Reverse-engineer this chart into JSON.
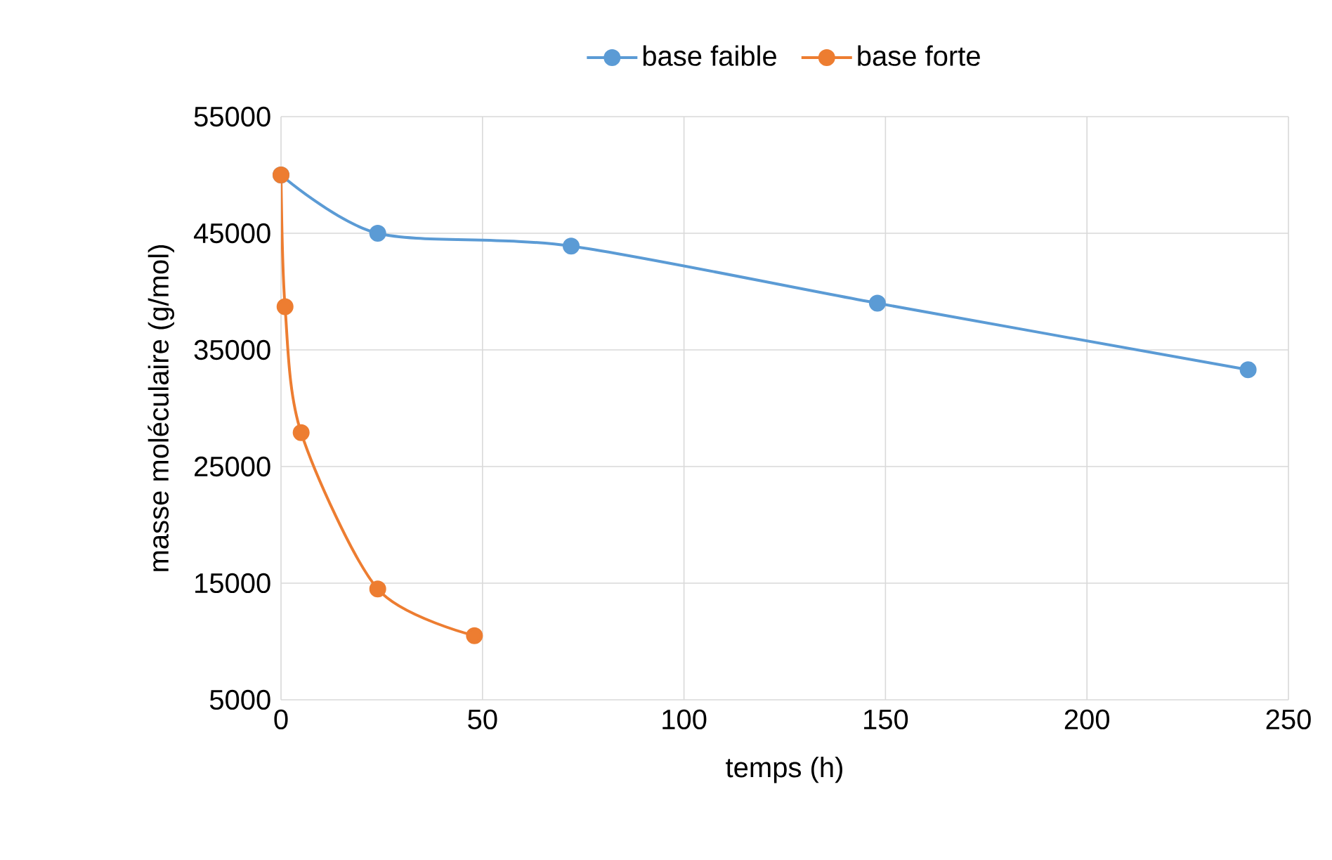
{
  "chart_data": {
    "type": "line",
    "xlabel": "temps (h)",
    "ylabel": "masse moléculaire (g/mol)",
    "xlim": [
      0,
      250
    ],
    "xticks": [
      0,
      50,
      100,
      150,
      200,
      250
    ],
    "ylim": [
      5000,
      55000
    ],
    "yticks": [
      5000,
      15000,
      25000,
      35000,
      45000,
      55000
    ],
    "grid": true,
    "legend": "top",
    "marker": "circle",
    "series": [
      {
        "name": "base faible",
        "color": "#5b9bd5",
        "x": [
          0,
          24,
          72,
          148,
          240
        ],
        "values": [
          50000,
          45000,
          43900,
          39000,
          33300
        ]
      },
      {
        "name": "base forte",
        "color": "#ed7d31",
        "x": [
          0,
          1,
          5,
          24,
          48
        ],
        "values": [
          50000,
          38700,
          27900,
          14500,
          10500
        ]
      }
    ]
  }
}
